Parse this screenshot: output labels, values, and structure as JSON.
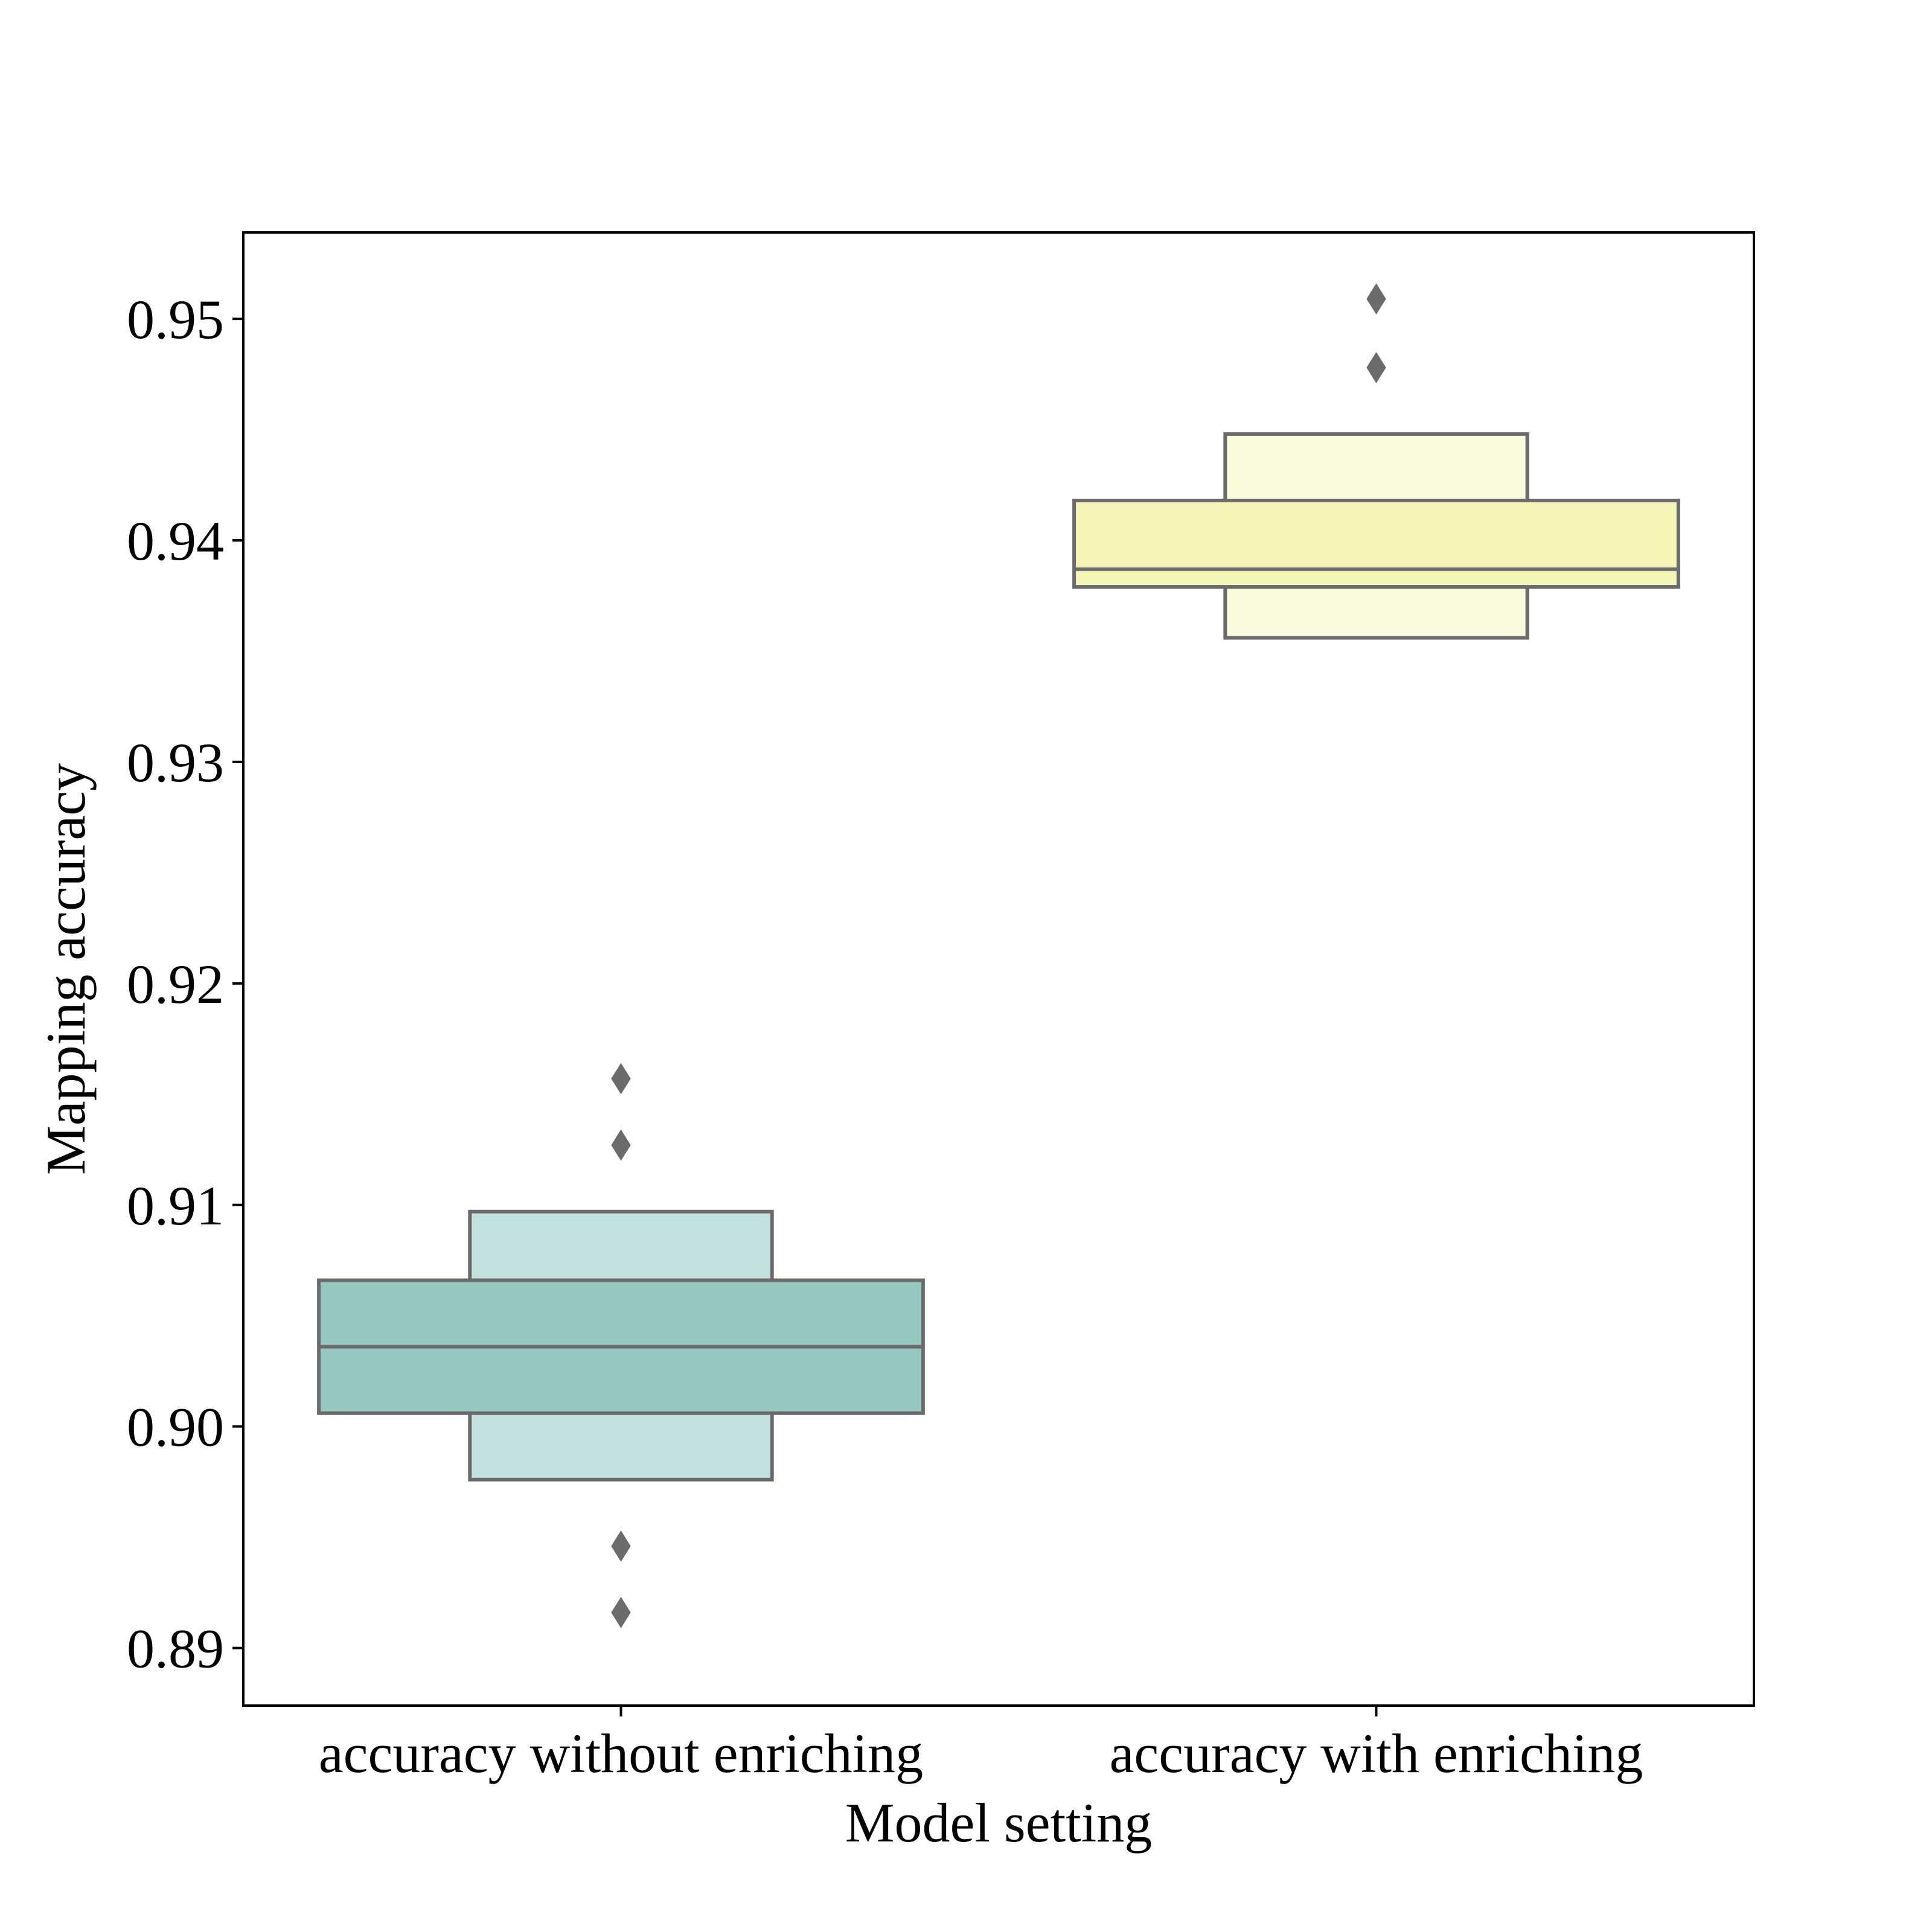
{
  "chart_data": {
    "type": "boxen",
    "title": "",
    "xlabel": "Model setting",
    "ylabel": "Mapping accuracy",
    "ylim": [
      0.8874,
      0.9539
    ],
    "yticks": [
      "0.89",
      "0.90",
      "0.91",
      "0.92",
      "0.93",
      "0.94",
      "0.95"
    ],
    "grid": false,
    "categories": [
      "accuracy without enriching",
      "accuracy with enriching"
    ],
    "series": [
      {
        "category": "accuracy without enriching",
        "color": "#97c8c0",
        "median": 0.9036,
        "boxes": [
          {
            "low": 0.9006,
            "high": 0.9066,
            "color": "#97c8c0"
          },
          {
            "low": 0.8976,
            "high": 0.9097,
            "color": "#c3e1dc"
          }
        ],
        "outliers": [
          0.9157,
          0.9127,
          0.8946,
          0.8916
        ]
      },
      {
        "category": "accuracy with enriching",
        "color": "#f5f5b8",
        "median": 0.9387,
        "boxes": [
          {
            "low": 0.9379,
            "high": 0.9418,
            "color": "#f5f5b8"
          },
          {
            "low": 0.9356,
            "high": 0.9448,
            "color": "#fafadc"
          }
        ],
        "outliers": [
          0.9509,
          0.9478
        ]
      }
    ],
    "edge_color": "#6b6b6b"
  }
}
